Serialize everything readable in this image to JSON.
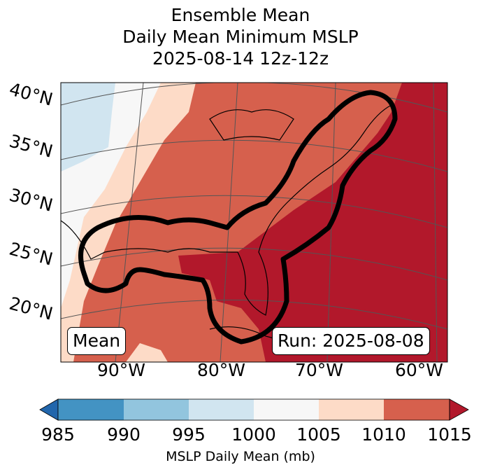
{
  "title": {
    "line1": "Ensemble Mean",
    "line2": "Daily Mean Minimum MSLP",
    "line3": "2025-08-14 12z-12z"
  },
  "map": {
    "lat_labels": [
      "40°N",
      "35°N",
      "30°N",
      "25°N",
      "20°N"
    ],
    "lon_labels": [
      "90°W",
      "80°W",
      "70°W",
      "60°W"
    ],
    "mean_label": "Mean",
    "run_label": "Run: 2025-08-08"
  },
  "colorbar": {
    "ticks": [
      "985",
      "990",
      "995",
      "1000",
      "1005",
      "1010",
      "1015"
    ],
    "label": "MSLP Daily Mean (mb)",
    "colors": [
      "#4393c3",
      "#92c5de",
      "#d1e5f0",
      "#f7f7f7",
      "#fddbc7",
      "#d6604d"
    ],
    "extend_min_color": "#2166ac",
    "extend_max_color": "#b2182b"
  }
}
